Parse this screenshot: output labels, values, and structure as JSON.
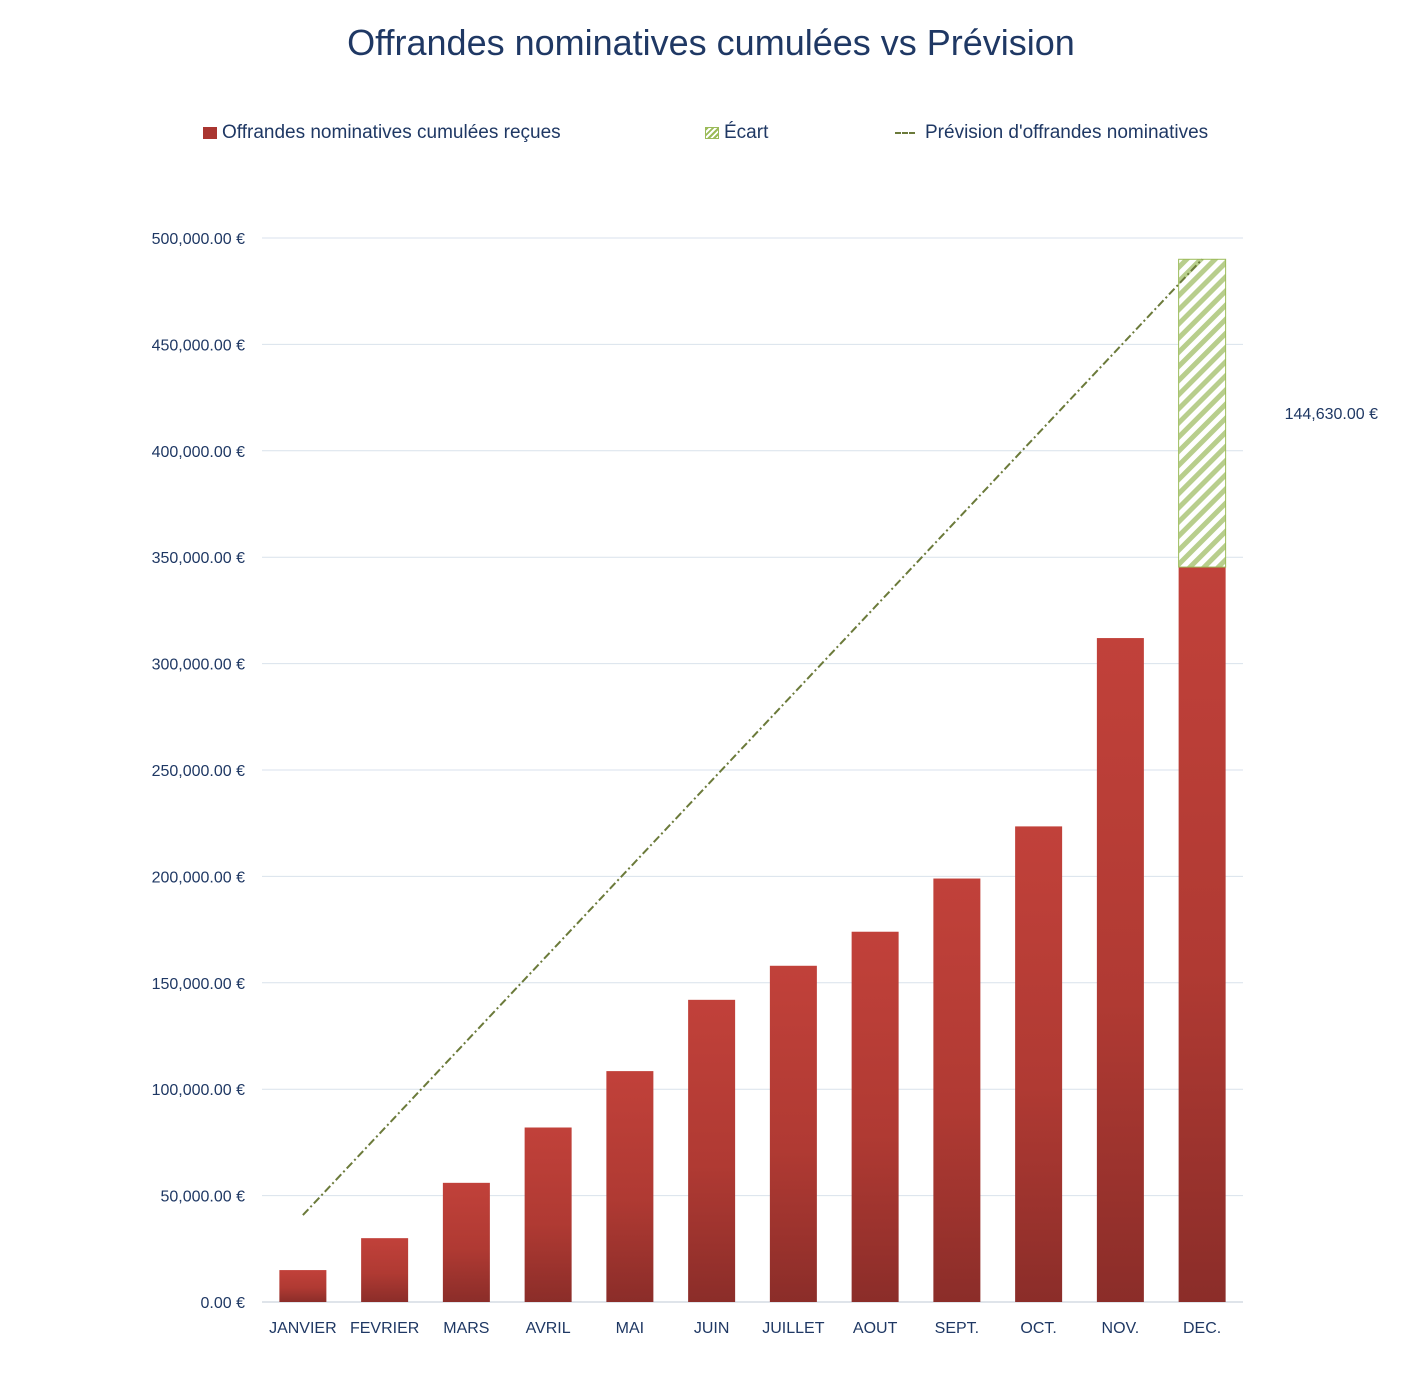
{
  "chart_data": {
    "type": "bar",
    "title": "Offrandes nominatives cumulées vs Prévision",
    "categories": [
      "JANVIER",
      "FEVRIER",
      "MARS",
      "AVRIL",
      "MAI",
      "JUIN",
      "JUILLET",
      "AOUT",
      "SEPT.",
      "OCT.",
      "NOV.",
      "DEC."
    ],
    "series": [
      {
        "name": "Offrandes nominatives cumulées reçues",
        "kind": "bar",
        "color": "#be4038",
        "values": [
          15000,
          30000,
          56000,
          82000,
          108500,
          142000,
          158000,
          174000,
          199000,
          223500,
          312000,
          345370
        ]
      },
      {
        "name": "Écart",
        "kind": "stacked-bar-hatched",
        "color": "#9bbb59",
        "values": [
          null,
          null,
          null,
          null,
          null,
          null,
          null,
          null,
          null,
          null,
          null,
          144630
        ],
        "data_label": "144,630.00 €"
      },
      {
        "name": "Prévision d'offrandes nominatives",
        "kind": "line",
        "style": "dash-dot",
        "color": "#6b7a3a",
        "values": [
          40833,
          81667,
          122500,
          163333,
          204167,
          245000,
          285833,
          326667,
          367500,
          408333,
          449167,
          490000
        ]
      }
    ],
    "ylim": [
      0,
      500000
    ],
    "yticks": [
      0,
      50000,
      100000,
      150000,
      200000,
      250000,
      300000,
      350000,
      400000,
      450000,
      500000
    ],
    "ytick_labels": [
      "0.00 €",
      "50,000.00 €",
      "100,000.00 €",
      "150,000.00 €",
      "200,000.00 €",
      "250,000.00 €",
      "300,000.00 €",
      "350,000.00 €",
      "400,000.00 €",
      "450,000.00 €",
      "500,000.00 €"
    ],
    "xlabel": "",
    "ylabel": "",
    "grid": true,
    "legend_position": "top"
  }
}
